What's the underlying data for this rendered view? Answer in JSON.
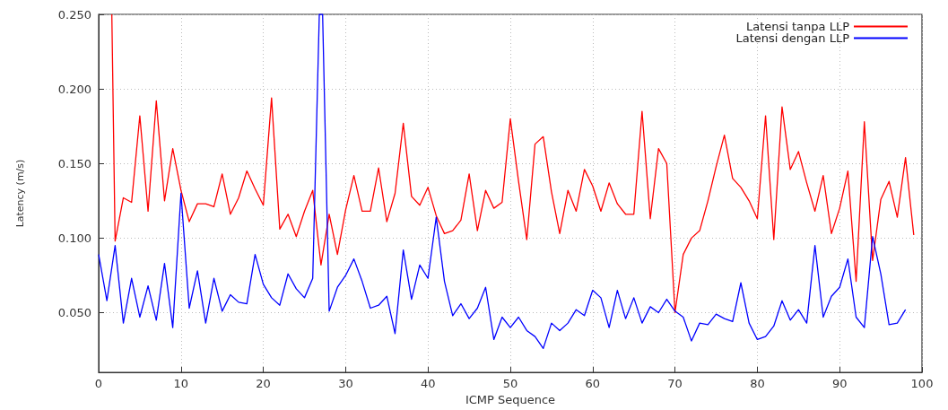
{
  "chart_data": {
    "type": "line",
    "xlabel": "ICMP Sequence",
    "ylabel": "Latency (m/s)",
    "xlim": [
      0,
      100
    ],
    "xticks": [
      0,
      10,
      20,
      30,
      40,
      50,
      60,
      70,
      80,
      90,
      100
    ],
    "ylim": [
      0.01,
      0.25
    ],
    "yticks": [
      {
        "value": 0.05,
        "label": "0.050"
      },
      {
        "value": 0.1,
        "label": "0.100"
      },
      {
        "value": 0.15,
        "label": "0.150"
      },
      {
        "value": 0.2,
        "label": "0.200"
      },
      {
        "value": 0.25,
        "label": "0.250"
      }
    ],
    "grid": true,
    "legend": "top right",
    "marker": "none",
    "series": [
      {
        "name": "Latensi tanpa LLP",
        "color": "#ff0000",
        "x": [
          1.6,
          2,
          3,
          4,
          5,
          6,
          7,
          8,
          9,
          10,
          11,
          12,
          13,
          14,
          15,
          16,
          17,
          18,
          19,
          20,
          21,
          22,
          23,
          24,
          25,
          26,
          27,
          28,
          29,
          30,
          31,
          32,
          33,
          34,
          35,
          36,
          37,
          38,
          39,
          40,
          41,
          42,
          43,
          44,
          45,
          46,
          47,
          48,
          49,
          50,
          51,
          52,
          53,
          54,
          55,
          56,
          57,
          58,
          59,
          60,
          61,
          62,
          63,
          64,
          65,
          66,
          67,
          68,
          69,
          70,
          71,
          72,
          73,
          74,
          75,
          76,
          77,
          78,
          79,
          80,
          81,
          82,
          83,
          84,
          85,
          86,
          87,
          88,
          89,
          90,
          91,
          92,
          93,
          94,
          95,
          96,
          97,
          98,
          99
        ],
        "values": [
          0.25,
          0.098,
          0.127,
          0.124,
          0.182,
          0.118,
          0.192,
          0.125,
          0.16,
          0.132,
          0.111,
          0.123,
          0.123,
          0.121,
          0.143,
          0.116,
          0.127,
          0.145,
          0.133,
          0.122,
          0.194,
          0.106,
          0.116,
          0.101,
          0.118,
          0.132,
          0.082,
          0.116,
          0.089,
          0.119,
          0.142,
          0.118,
          0.118,
          0.147,
          0.111,
          0.13,
          0.177,
          0.128,
          0.122,
          0.134,
          0.115,
          0.103,
          0.105,
          0.112,
          0.143,
          0.105,
          0.132,
          0.12,
          0.124,
          0.18,
          0.138,
          0.099,
          0.163,
          0.168,
          0.131,
          0.103,
          0.132,
          0.118,
          0.146,
          0.135,
          0.118,
          0.137,
          0.123,
          0.116,
          0.116,
          0.185,
          0.113,
          0.16,
          0.15,
          0.05,
          0.089,
          0.1,
          0.105,
          0.125,
          0.148,
          0.169,
          0.14,
          0.134,
          0.125,
          0.113,
          0.182,
          0.099,
          0.188,
          0.146,
          0.158,
          0.137,
          0.118,
          0.142,
          0.103,
          0.12,
          0.145,
          0.071,
          0.178,
          0.085,
          0.126,
          0.138,
          0.114,
          0.154,
          0.102
        ]
      },
      {
        "name": "Latensi dengan LLP",
        "color": "#0000ff",
        "x": [
          0,
          1,
          2,
          3,
          4,
          5,
          6,
          7,
          8,
          9,
          10,
          11,
          12,
          13,
          14,
          15,
          16,
          17,
          18,
          19,
          20,
          21,
          22,
          23,
          24,
          25,
          26,
          26.8,
          27.2,
          28,
          29,
          30,
          31,
          32,
          33,
          34,
          35,
          36,
          37,
          38,
          39,
          40,
          41,
          42,
          43,
          44,
          45,
          46,
          47,
          48,
          49,
          50,
          51,
          52,
          53,
          54,
          55,
          56,
          57,
          58,
          59,
          60,
          61,
          62,
          63,
          64,
          65,
          66,
          67,
          68,
          69,
          70,
          71,
          72,
          73,
          74,
          75,
          76,
          77,
          78,
          79,
          80,
          81,
          82,
          83,
          84,
          85,
          86,
          87,
          88,
          89,
          90,
          91,
          92,
          93,
          94,
          95,
          96,
          97,
          98
        ],
        "values": [
          0.089,
          0.058,
          0.095,
          0.043,
          0.073,
          0.047,
          0.068,
          0.045,
          0.083,
          0.04,
          0.13,
          0.053,
          0.078,
          0.043,
          0.073,
          0.051,
          0.062,
          0.057,
          0.056,
          0.089,
          0.069,
          0.06,
          0.055,
          0.076,
          0.066,
          0.06,
          0.073,
          0.25,
          0.25,
          0.051,
          0.067,
          0.075,
          0.086,
          0.071,
          0.053,
          0.055,
          0.061,
          0.036,
          0.092,
          0.059,
          0.082,
          0.073,
          0.114,
          0.071,
          0.048,
          0.056,
          0.046,
          0.053,
          0.067,
          0.032,
          0.047,
          0.04,
          0.047,
          0.038,
          0.034,
          0.026,
          0.043,
          0.038,
          0.043,
          0.052,
          0.048,
          0.065,
          0.06,
          0.04,
          0.065,
          0.046,
          0.06,
          0.043,
          0.054,
          0.05,
          0.059,
          0.051,
          0.047,
          0.031,
          0.043,
          0.042,
          0.049,
          0.046,
          0.044,
          0.07,
          0.043,
          0.032,
          0.034,
          0.041,
          0.058,
          0.045,
          0.052,
          0.043,
          0.095,
          0.047,
          0.061,
          0.067,
          0.086,
          0.047,
          0.04,
          0.101,
          0.076,
          0.042,
          0.043,
          0.052
        ]
      }
    ]
  }
}
